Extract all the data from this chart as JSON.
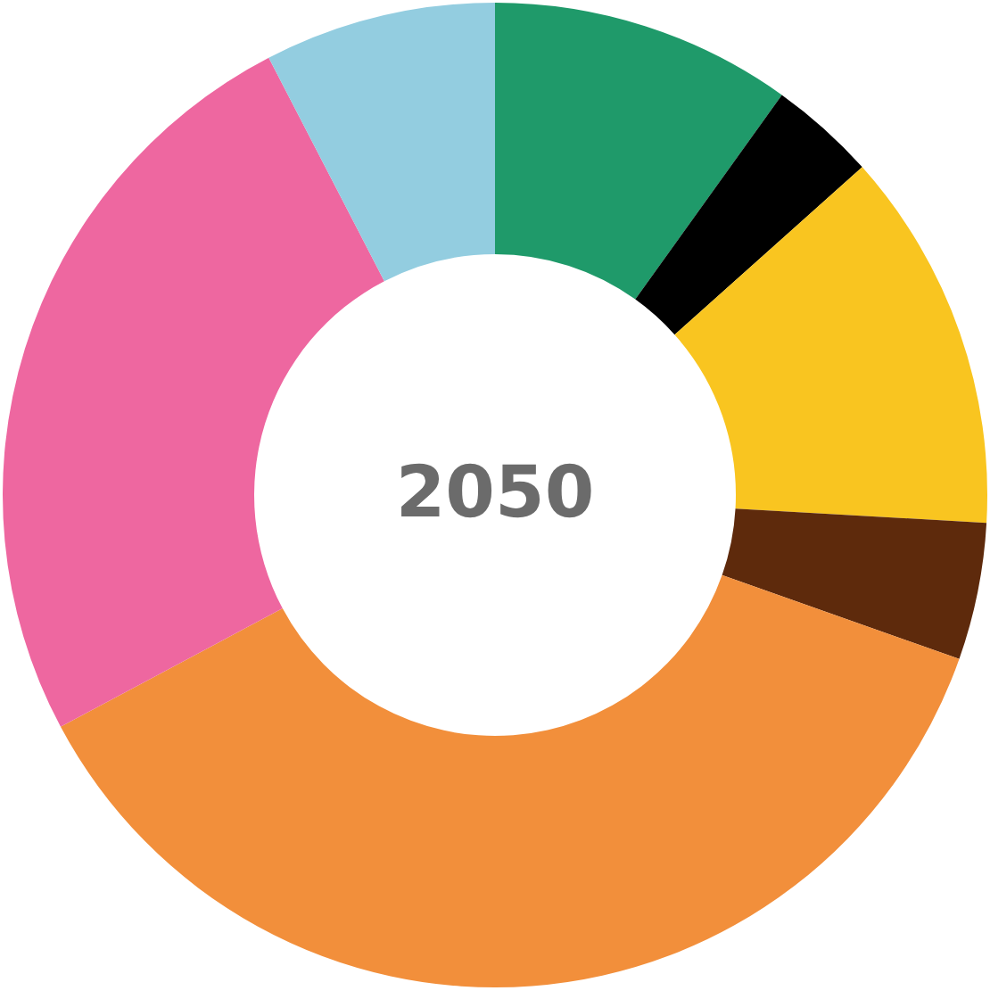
{
  "chart_data": {
    "type": "donut",
    "title": "2050",
    "categories": [
      null,
      null,
      null,
      null,
      null,
      null,
      null
    ],
    "values": [
      9.9,
      3.5,
      12.5,
      4.5,
      36.8,
      25.2,
      7.6
    ],
    "colors": [
      "#1f9a6a",
      "#000000",
      "#f9c520",
      "#5e2a0c",
      "#f28f3b",
      "#ee67a0",
      "#93cde0"
    ]
  }
}
